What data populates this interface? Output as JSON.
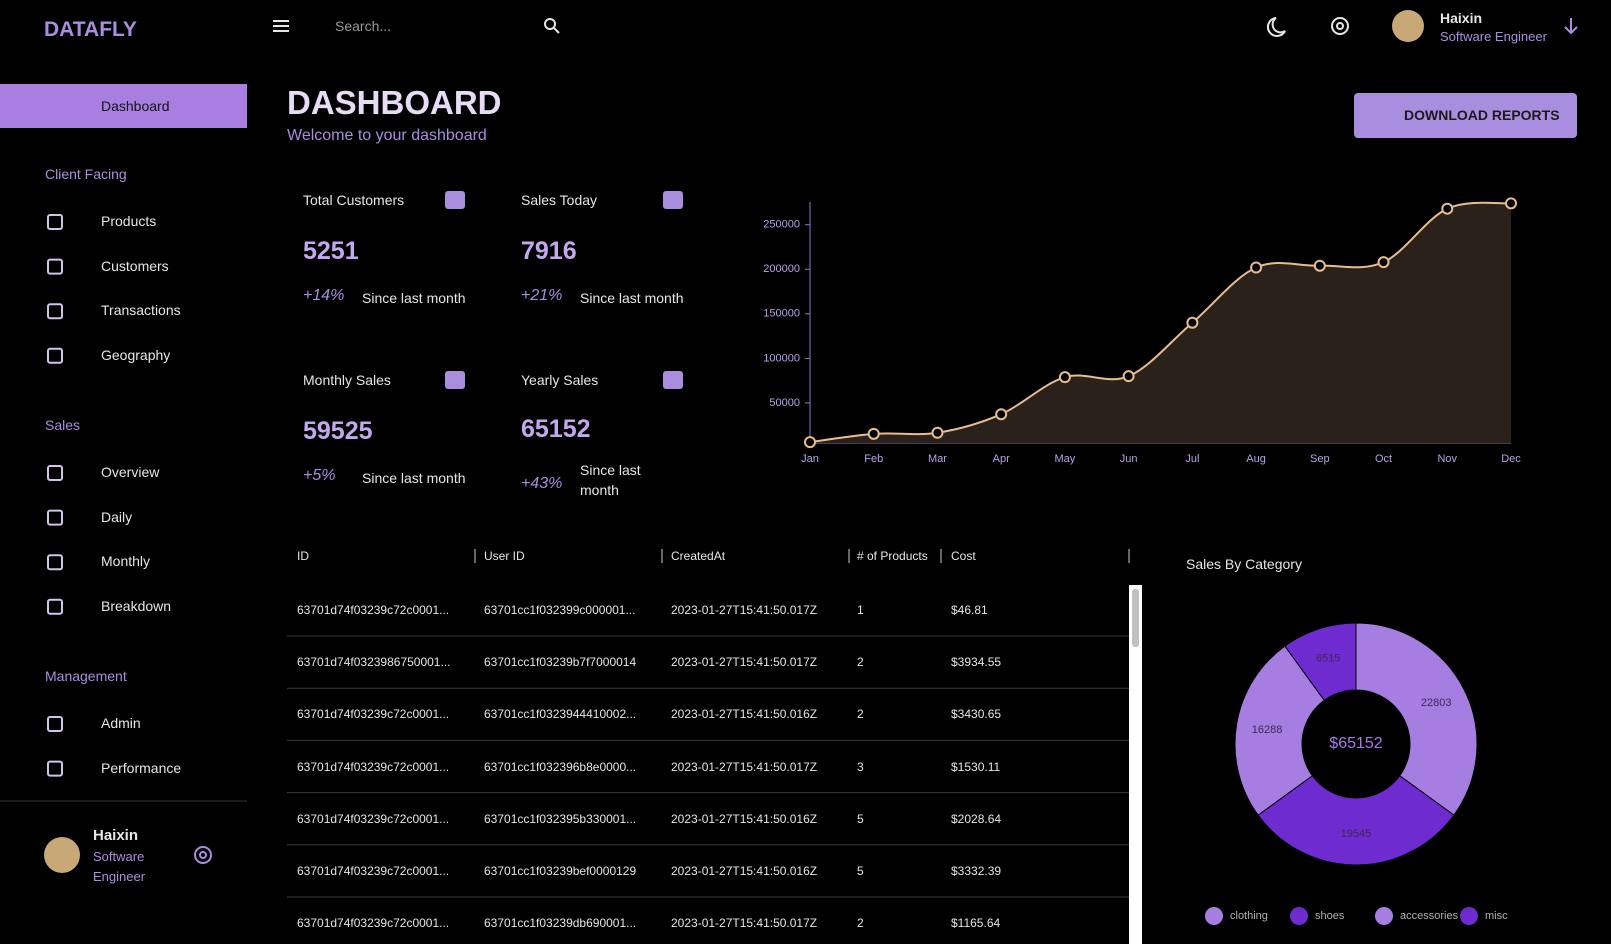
{
  "brand": "DATAFLY",
  "search_placeholder": "Search...",
  "user": {
    "name": "Haixin",
    "role": "Software Engineer"
  },
  "sidebar": {
    "active": "Dashboard",
    "sections": [
      {
        "title": "Client Facing",
        "items": [
          "Products",
          "Customers",
          "Transactions",
          "Geography"
        ]
      },
      {
        "title": "Sales",
        "items": [
          "Overview",
          "Daily",
          "Monthly",
          "Breakdown"
        ]
      },
      {
        "title": "Management",
        "items": [
          "Admin",
          "Performance"
        ]
      }
    ]
  },
  "header": {
    "title": "DASHBOARD",
    "subtitle": "Welcome to your dashboard",
    "button": "DOWNLOAD REPORTS"
  },
  "stats": [
    {
      "title": "Total Customers",
      "value": 5251,
      "change": "+14%",
      "note": "Since last month"
    },
    {
      "title": "Sales Today",
      "value": 7916,
      "change": "+21%",
      "note": "Since last month"
    },
    {
      "title": "Monthly Sales",
      "value": 59525,
      "change": "+5%",
      "note": "Since last month"
    },
    {
      "title": "Yearly Sales",
      "value": 65152,
      "change": "+43%",
      "note": "Since last month"
    }
  ],
  "table": {
    "columns": [
      "ID",
      "User ID",
      "CreatedAt",
      "# of Products",
      "Cost"
    ],
    "rows": [
      [
        "63701d74f03239c72c0001...",
        "63701cc1f032399c000001...",
        "2023-01-27T15:41:50.017Z",
        1,
        "$46.81"
      ],
      [
        "63701d74f0323986750001...",
        "63701cc1f03239b7f7000014",
        "2023-01-27T15:41:50.017Z",
        2,
        "$3934.55"
      ],
      [
        "63701d74f03239c72c0001...",
        "63701cc1f0323944410002...",
        "2023-01-27T15:41:50.016Z",
        2,
        "$3430.65"
      ],
      [
        "63701d74f03239c72c0001...",
        "63701cc1f032396b8e0000...",
        "2023-01-27T15:41:50.017Z",
        3,
        "$1530.11"
      ],
      [
        "63701d74f03239c72c0001...",
        "63701cc1f032395b330001...",
        "2023-01-27T15:41:50.016Z",
        5,
        "$2028.64"
      ],
      [
        "63701d74f03239c72c0001...",
        "63701cc1f03239bef0000129",
        "2023-01-27T15:41:50.016Z",
        5,
        "$3332.39"
      ],
      [
        "63701d74f03239c72c0001...",
        "63701cc1f03239db690001...",
        "2023-01-27T15:41:50.017Z",
        2,
        "$1165.64"
      ]
    ]
  },
  "chart_data": [
    {
      "type": "line",
      "categories": [
        "Jan",
        "Feb",
        "Mar",
        "Apr",
        "May",
        "Jun",
        "Jul",
        "Aug",
        "Sep",
        "Oct",
        "Nov",
        "Dec"
      ],
      "values": [
        6000,
        15300,
        16500,
        37300,
        78900,
        80000,
        140000,
        202000,
        204000,
        208000,
        268000,
        274000
      ],
      "color": "#e9bd8f",
      "ylim": [
        5000,
        280000
      ],
      "yticks": [
        50000,
        100000,
        150000,
        200000,
        250000
      ]
    },
    {
      "type": "pie",
      "title": "Sales By Category",
      "center_label": "$65152",
      "categories": [
        "clothing",
        "shoes",
        "accessories",
        "misc"
      ],
      "values": [
        22803,
        19545,
        16288,
        6515
      ],
      "colors": [
        "#a67de0",
        "#6e2bd0",
        "#a67de0",
        "#6e2bd0"
      ]
    }
  ]
}
